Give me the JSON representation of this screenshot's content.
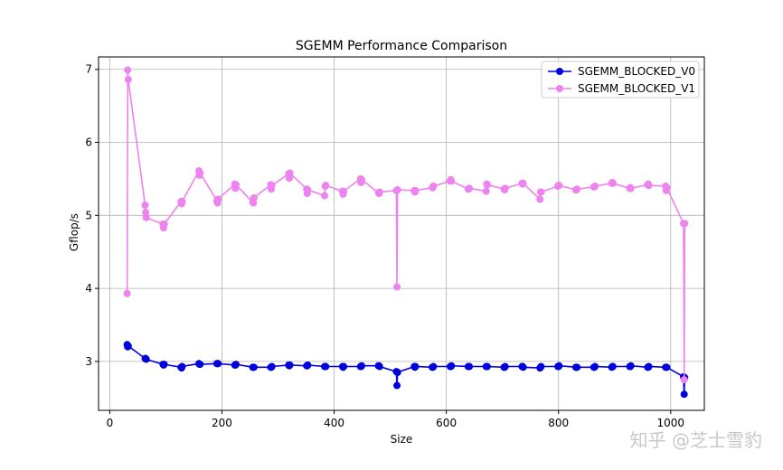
{
  "chart_data": {
    "type": "line",
    "title": "SGEMM Performance Comparison",
    "xlabel": "Size",
    "ylabel": "Gflop/s",
    "xlim": [
      -20,
      1060
    ],
    "ylim": [
      2.33,
      7.17
    ],
    "xticks": [
      0,
      200,
      400,
      600,
      800,
      1000
    ],
    "yticks": [
      3,
      4,
      5,
      6,
      7
    ],
    "grid": true,
    "legend_position": "top-right",
    "series": [
      {
        "name": "SGEMM_BLOCKED_V0",
        "color": "#0000dd",
        "x": [
          31,
          32,
          33,
          63,
          64,
          65,
          95,
          96,
          97,
          127,
          128,
          129,
          159,
          160,
          161,
          191,
          192,
          193,
          223,
          224,
          225,
          255,
          256,
          257,
          287,
          288,
          289,
          319,
          320,
          321,
          351,
          352,
          353,
          383,
          384,
          385,
          415,
          416,
          417,
          447,
          448,
          449,
          479,
          480,
          481,
          511,
          512,
          513,
          543,
          544,
          545,
          575,
          576,
          577,
          607,
          608,
          609,
          639,
          640,
          641,
          671,
          672,
          673,
          703,
          704,
          705,
          735,
          736,
          737,
          767,
          768,
          769,
          799,
          800,
          801,
          831,
          832,
          833,
          863,
          864,
          865,
          895,
          896,
          897,
          927,
          928,
          929,
          959,
          960,
          961,
          991,
          992,
          993,
          1023,
          1024,
          1025
        ],
        "y": [
          3.23,
          3.2,
          3.21,
          3.04,
          3.04,
          3.03,
          2.96,
          2.95,
          2.96,
          2.92,
          2.91,
          2.93,
          2.97,
          2.96,
          2.96,
          2.97,
          2.97,
          2.97,
          2.95,
          2.95,
          2.96,
          2.92,
          2.92,
          2.92,
          2.92,
          2.92,
          2.93,
          2.95,
          2.94,
          2.95,
          2.94,
          2.94,
          2.95,
          2.93,
          2.93,
          2.93,
          2.93,
          2.92,
          2.93,
          2.93,
          2.93,
          2.94,
          2.94,
          2.94,
          2.93,
          2.86,
          2.67,
          2.85,
          2.93,
          2.92,
          2.93,
          2.92,
          2.92,
          2.93,
          2.93,
          2.93,
          2.94,
          2.93,
          2.93,
          2.93,
          2.93,
          2.93,
          2.93,
          2.92,
          2.92,
          2.93,
          2.93,
          2.93,
          2.92,
          2.91,
          2.92,
          2.93,
          2.93,
          2.93,
          2.94,
          2.92,
          2.92,
          2.92,
          2.92,
          2.92,
          2.93,
          2.92,
          2.93,
          2.93,
          2.93,
          2.93,
          2.94,
          2.92,
          2.92,
          2.93,
          2.92,
          2.92,
          2.92,
          2.79,
          2.55,
          2.78
        ]
      },
      {
        "name": "SGEMM_BLOCKED_V1",
        "color": "#ee82ee",
        "x": [
          31,
          32,
          33,
          63,
          64,
          65,
          95,
          96,
          97,
          127,
          128,
          129,
          159,
          160,
          161,
          191,
          192,
          193,
          223,
          224,
          225,
          255,
          256,
          257,
          287,
          288,
          289,
          319,
          320,
          321,
          351,
          352,
          353,
          383,
          384,
          385,
          415,
          416,
          417,
          447,
          448,
          449,
          479,
          480,
          481,
          511,
          512,
          513,
          543,
          544,
          545,
          575,
          576,
          577,
          607,
          608,
          609,
          639,
          640,
          641,
          671,
          672,
          673,
          703,
          704,
          705,
          735,
          736,
          737,
          767,
          768,
          769,
          799,
          800,
          801,
          831,
          832,
          833,
          863,
          864,
          865,
          895,
          896,
          897,
          927,
          928,
          929,
          959,
          960,
          961,
          991,
          992,
          993,
          1023,
          1024,
          1025
        ],
        "y": [
          3.93,
          6.99,
          6.86,
          5.14,
          5.04,
          4.97,
          4.88,
          4.83,
          4.88,
          5.19,
          5.16,
          5.19,
          5.61,
          5.55,
          5.58,
          5.2,
          5.17,
          5.22,
          5.43,
          5.37,
          5.42,
          5.18,
          5.17,
          5.24,
          5.42,
          5.36,
          5.41,
          5.57,
          5.51,
          5.58,
          5.36,
          5.3,
          5.35,
          5.27,
          5.4,
          5.41,
          5.33,
          5.29,
          5.33,
          5.5,
          5.45,
          5.49,
          5.31,
          5.3,
          5.32,
          5.34,
          4.02,
          5.35,
          5.34,
          5.32,
          5.34,
          5.38,
          5.38,
          5.4,
          5.47,
          5.49,
          5.47,
          5.36,
          5.36,
          5.37,
          5.33,
          5.43,
          5.42,
          5.36,
          5.35,
          5.37,
          5.44,
          5.43,
          5.44,
          5.22,
          5.32,
          5.32,
          5.4,
          5.41,
          5.41,
          5.35,
          5.35,
          5.36,
          5.39,
          5.39,
          5.4,
          5.44,
          5.45,
          5.44,
          5.37,
          5.38,
          5.37,
          5.42,
          5.43,
          5.41,
          5.4,
          5.34,
          5.38,
          4.89,
          2.75,
          4.89
        ]
      }
    ]
  },
  "watermark": "知乎 @芝士雪豹"
}
